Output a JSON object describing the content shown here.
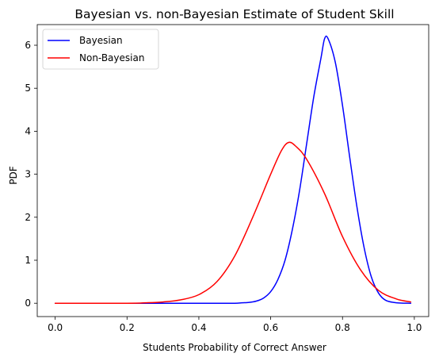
{
  "chart_data": {
    "type": "line",
    "title": "Bayesian vs. non-Bayesian Estimate of  Student Skill",
    "xlabel": "Students Probability of Correct Answer",
    "ylabel": "PDF",
    "xlim": [
      -0.05,
      1.04
    ],
    "ylim": [
      -0.31,
      6.48
    ],
    "xticks": [
      0.0,
      0.2,
      0.4,
      0.6,
      0.8,
      1.0
    ],
    "xtick_labels": [
      "0.0",
      "0.2",
      "0.4",
      "0.6",
      "0.8",
      "1.0"
    ],
    "yticks": [
      0,
      1,
      2,
      3,
      4,
      5,
      6
    ],
    "ytick_labels": [
      "0",
      "1",
      "2",
      "3",
      "4",
      "5",
      "6"
    ],
    "grid": false,
    "legend_position": "top-left",
    "series": [
      {
        "name": "Bayesian",
        "color": "#0000ff",
        "x": [
          0.0,
          0.3,
          0.4,
          0.45,
          0.5,
          0.52,
          0.54,
          0.56,
          0.58,
          0.6,
          0.62,
          0.64,
          0.66,
          0.68,
          0.7,
          0.72,
          0.74,
          0.75,
          0.76,
          0.78,
          0.8,
          0.82,
          0.84,
          0.86,
          0.88,
          0.9,
          0.92,
          0.95,
          0.99
        ],
        "y": [
          0.0,
          0.0,
          0.0,
          0.0,
          0.0,
          0.01,
          0.02,
          0.05,
          0.12,
          0.27,
          0.55,
          1.0,
          1.7,
          2.6,
          3.7,
          4.8,
          5.7,
          6.15,
          6.15,
          5.6,
          4.6,
          3.4,
          2.25,
          1.3,
          0.62,
          0.24,
          0.07,
          0.01,
          0.0
        ]
      },
      {
        "name": "Non-Bayesian",
        "color": "#ff0000",
        "x": [
          0.0,
          0.2,
          0.25,
          0.3,
          0.35,
          0.4,
          0.45,
          0.5,
          0.55,
          0.6,
          0.63,
          0.65,
          0.67,
          0.7,
          0.75,
          0.8,
          0.85,
          0.9,
          0.95,
          0.99
        ],
        "y": [
          0.0,
          0.0,
          0.01,
          0.03,
          0.08,
          0.2,
          0.5,
          1.1,
          2.0,
          3.0,
          3.55,
          3.74,
          3.65,
          3.35,
          2.55,
          1.55,
          0.78,
          0.3,
          0.1,
          0.03
        ]
      }
    ]
  }
}
